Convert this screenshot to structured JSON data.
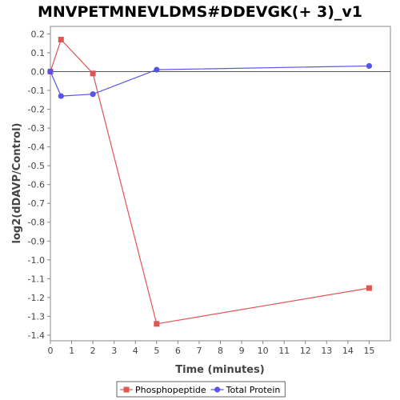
{
  "chart_data": {
    "type": "line",
    "title": "MNVPETMNEVLDMS#DDEVGK(+ 3)_v1",
    "xlabel": "Time (minutes)",
    "ylabel": "log2(dDAVP/Control)",
    "xlim": [
      0,
      16
    ],
    "ylim": [
      -1.43,
      0.24
    ],
    "x_ticks": [
      0,
      1,
      2,
      3,
      4,
      5,
      6,
      7,
      8,
      9,
      10,
      11,
      12,
      13,
      14,
      15
    ],
    "y_ticks": [
      0.2,
      0.1,
      0.0,
      -0.1,
      -0.2,
      -0.3,
      -0.4,
      -0.5,
      -0.6,
      -0.7,
      -0.8,
      -0.9,
      -1.0,
      -1.1,
      -1.2,
      -1.3,
      -1.4
    ],
    "y_tick_labels": [
      "0.2",
      "0.1",
      "0.0",
      "-0.1",
      "-0.2",
      "-0.3",
      "-0.4",
      "-0.5",
      "-0.6",
      "-0.7",
      "-0.8",
      "-0.9",
      "-1.0",
      "-1.1",
      "-1.2",
      "-1.3",
      "-1.4"
    ],
    "zero_line": true,
    "grid": false,
    "legend_position": "bottom",
    "series": [
      {
        "name": "Phosphopeptide",
        "color": "#e05555",
        "marker": "square",
        "x": [
          0,
          0.5,
          2,
          5,
          15
        ],
        "y": [
          0.0,
          0.17,
          -0.01,
          -1.34,
          -1.15
        ]
      },
      {
        "name": "Total Protein",
        "color": "#5555e8",
        "marker": "circle",
        "x": [
          0,
          0.5,
          2,
          5,
          15
        ],
        "y": [
          0.0,
          -0.13,
          -0.12,
          0.01,
          0.03
        ]
      }
    ]
  }
}
